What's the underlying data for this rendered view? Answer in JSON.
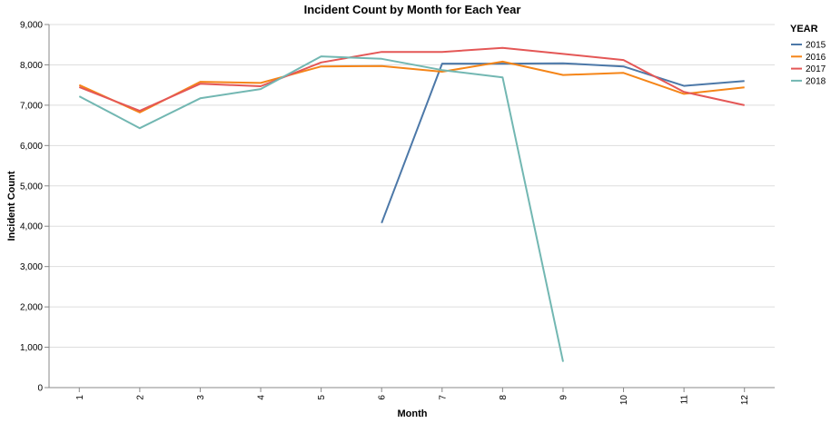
{
  "chart_data": {
    "type": "line",
    "title": "Incident Count by Month for Each Year",
    "xlabel": "Month",
    "ylabel": "Incident Count",
    "categories": [
      1,
      2,
      3,
      4,
      5,
      6,
      7,
      8,
      9,
      10,
      11,
      12
    ],
    "x_tick_labels": [
      "1",
      "2",
      "3",
      "4",
      "5",
      "6",
      "7",
      "8",
      "9",
      "10",
      "11",
      "12"
    ],
    "ylim": [
      0,
      9000
    ],
    "y_ticks": [
      0,
      1000,
      2000,
      3000,
      4000,
      5000,
      6000,
      7000,
      8000,
      9000
    ],
    "y_tick_labels": [
      "0",
      "1,000",
      "2,000",
      "3,000",
      "4,000",
      "5,000",
      "6,000",
      "7,000",
      "8,000",
      "9,000"
    ],
    "grid": true,
    "legend": {
      "title": "YEAR",
      "placement": "top-right"
    },
    "series": [
      {
        "name": "2015",
        "color": "#4c78a8",
        "x": [
          6,
          7,
          8,
          9,
          10,
          11,
          12
        ],
        "values": [
          4080,
          8030,
          8030,
          8040,
          7960,
          7480,
          7600
        ]
      },
      {
        "name": "2016",
        "color": "#f58518",
        "x": [
          1,
          2,
          3,
          4,
          5,
          6,
          7,
          8,
          9,
          10,
          11,
          12
        ],
        "values": [
          7500,
          6820,
          7580,
          7550,
          7960,
          7970,
          7830,
          8080,
          7750,
          7800,
          7280,
          7440
        ]
      },
      {
        "name": "2017",
        "color": "#e45756",
        "x": [
          1,
          2,
          3,
          4,
          5,
          6,
          7,
          8,
          9,
          10,
          11,
          12
        ],
        "values": [
          7450,
          6860,
          7530,
          7470,
          8060,
          8320,
          8320,
          8420,
          8270,
          8120,
          7330,
          7000
        ]
      },
      {
        "name": "2018",
        "color": "#72b7b2",
        "x": [
          1,
          2,
          3,
          4,
          5,
          6,
          7,
          8,
          9
        ],
        "values": [
          7220,
          6430,
          7170,
          7400,
          8210,
          8150,
          7870,
          7690,
          640
        ]
      }
    ]
  }
}
